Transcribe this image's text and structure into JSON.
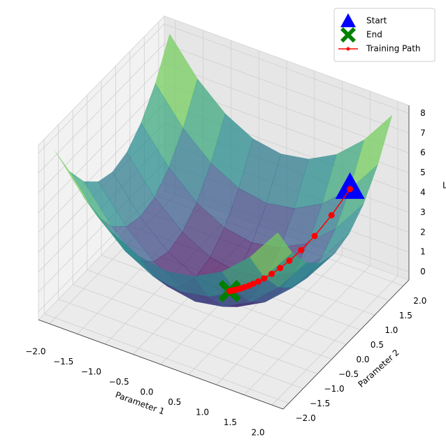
{
  "chart_data": {
    "type": "surface3d",
    "xlabel": "Parameter 1",
    "ylabel": "Parameter 2",
    "zlabel": "L",
    "xlim": [
      -2.2,
      2.2
    ],
    "ylim": [
      -2.2,
      2.2
    ],
    "zlim": [
      -0.4,
      8.4
    ],
    "xticks": [
      {
        "value": -2,
        "label": "−2.0"
      },
      {
        "value": -1.5,
        "label": "−1.5"
      },
      {
        "value": -1,
        "label": "−1.0"
      },
      {
        "value": -0.5,
        "label": "−0.5"
      },
      {
        "value": 0,
        "label": "0.0"
      },
      {
        "value": 0.5,
        "label": "0.5"
      },
      {
        "value": 1,
        "label": "1.0"
      },
      {
        "value": 1.5,
        "label": "1.5"
      },
      {
        "value": 2,
        "label": "2.0"
      }
    ],
    "yticks": [
      {
        "value": -2,
        "label": "−2.0"
      },
      {
        "value": -1.5,
        "label": "−1.5"
      },
      {
        "value": -1,
        "label": "−1.0"
      },
      {
        "value": -0.5,
        "label": "−0.5"
      },
      {
        "value": 0,
        "label": "0.0"
      },
      {
        "value": 0.5,
        "label": "0.5"
      },
      {
        "value": 1,
        "label": "1.0"
      },
      {
        "value": 1.5,
        "label": "1.5"
      },
      {
        "value": 2,
        "label": "2.0"
      }
    ],
    "zticks": [
      0,
      1,
      2,
      3,
      4,
      5,
      6,
      7,
      8
    ],
    "surface": {
      "x": [
        -2,
        -1.5,
        -1,
        -0.5,
        0,
        0.5,
        1,
        1.5,
        2
      ],
      "y": [
        -2,
        -1.5,
        -1,
        -0.5,
        0,
        0.5,
        1,
        1.5,
        2
      ],
      "z": [
        [
          8,
          6.25,
          5,
          4.25,
          4,
          4.25,
          5,
          6.25,
          8
        ],
        [
          6.25,
          4.5,
          3.25,
          2.5,
          2.25,
          2.5,
          3.25,
          4.5,
          6.25
        ],
        [
          5,
          3.25,
          2,
          1.25,
          1,
          1.25,
          2,
          3.25,
          5
        ],
        [
          4.25,
          2.5,
          1.25,
          0.5,
          0.25,
          0.5,
          1.25,
          2.5,
          4.25
        ],
        [
          4,
          2.25,
          1,
          0.25,
          0,
          0.25,
          1,
          2.25,
          4
        ],
        [
          4.25,
          2.5,
          1.25,
          0.5,
          0.25,
          0.5,
          1.25,
          2.5,
          4.25
        ],
        [
          5,
          3.25,
          2,
          1.25,
          1,
          1.25,
          2,
          3.25,
          5
        ],
        [
          6.25,
          4.5,
          3.25,
          2.5,
          2.25,
          2.5,
          3.25,
          4.5,
          6.25
        ],
        [
          8,
          6.25,
          5,
          4.25,
          4,
          4.25,
          5,
          6.25,
          8
        ]
      ]
    },
    "series": [
      {
        "name": "Start",
        "color": "blue",
        "marker": "triangle",
        "x": [
          1.5
        ],
        "y": [
          1.5
        ],
        "z": [
          4.5
        ]
      },
      {
        "name": "End",
        "color": "green",
        "marker": "x",
        "x": [
          0.07
        ],
        "y": [
          0.07
        ],
        "z": [
          0.01
        ]
      },
      {
        "name": "Training Path",
        "color": "red",
        "marker": "line",
        "x": [
          1.5,
          1.28,
          1.08,
          0.92,
          0.78,
          0.67,
          0.57,
          0.48,
          0.41,
          0.35,
          0.3,
          0.25,
          0.21,
          0.18,
          0.15,
          0.13,
          0.11,
          0.09,
          0.08,
          0.07
        ],
        "y": [
          1.5,
          1.28,
          1.08,
          0.92,
          0.78,
          0.67,
          0.57,
          0.48,
          0.41,
          0.35,
          0.3,
          0.25,
          0.21,
          0.18,
          0.15,
          0.13,
          0.11,
          0.09,
          0.08,
          0.07
        ],
        "z": [
          4.5,
          3.28,
          2.33,
          1.69,
          1.22,
          0.9,
          0.65,
          0.46,
          0.34,
          0.25,
          0.18,
          0.13,
          0.09,
          0.06,
          0.05,
          0.03,
          0.02,
          0.02,
          0.01,
          0.01
        ]
      }
    ],
    "legend": "upper right",
    "grid": true
  }
}
